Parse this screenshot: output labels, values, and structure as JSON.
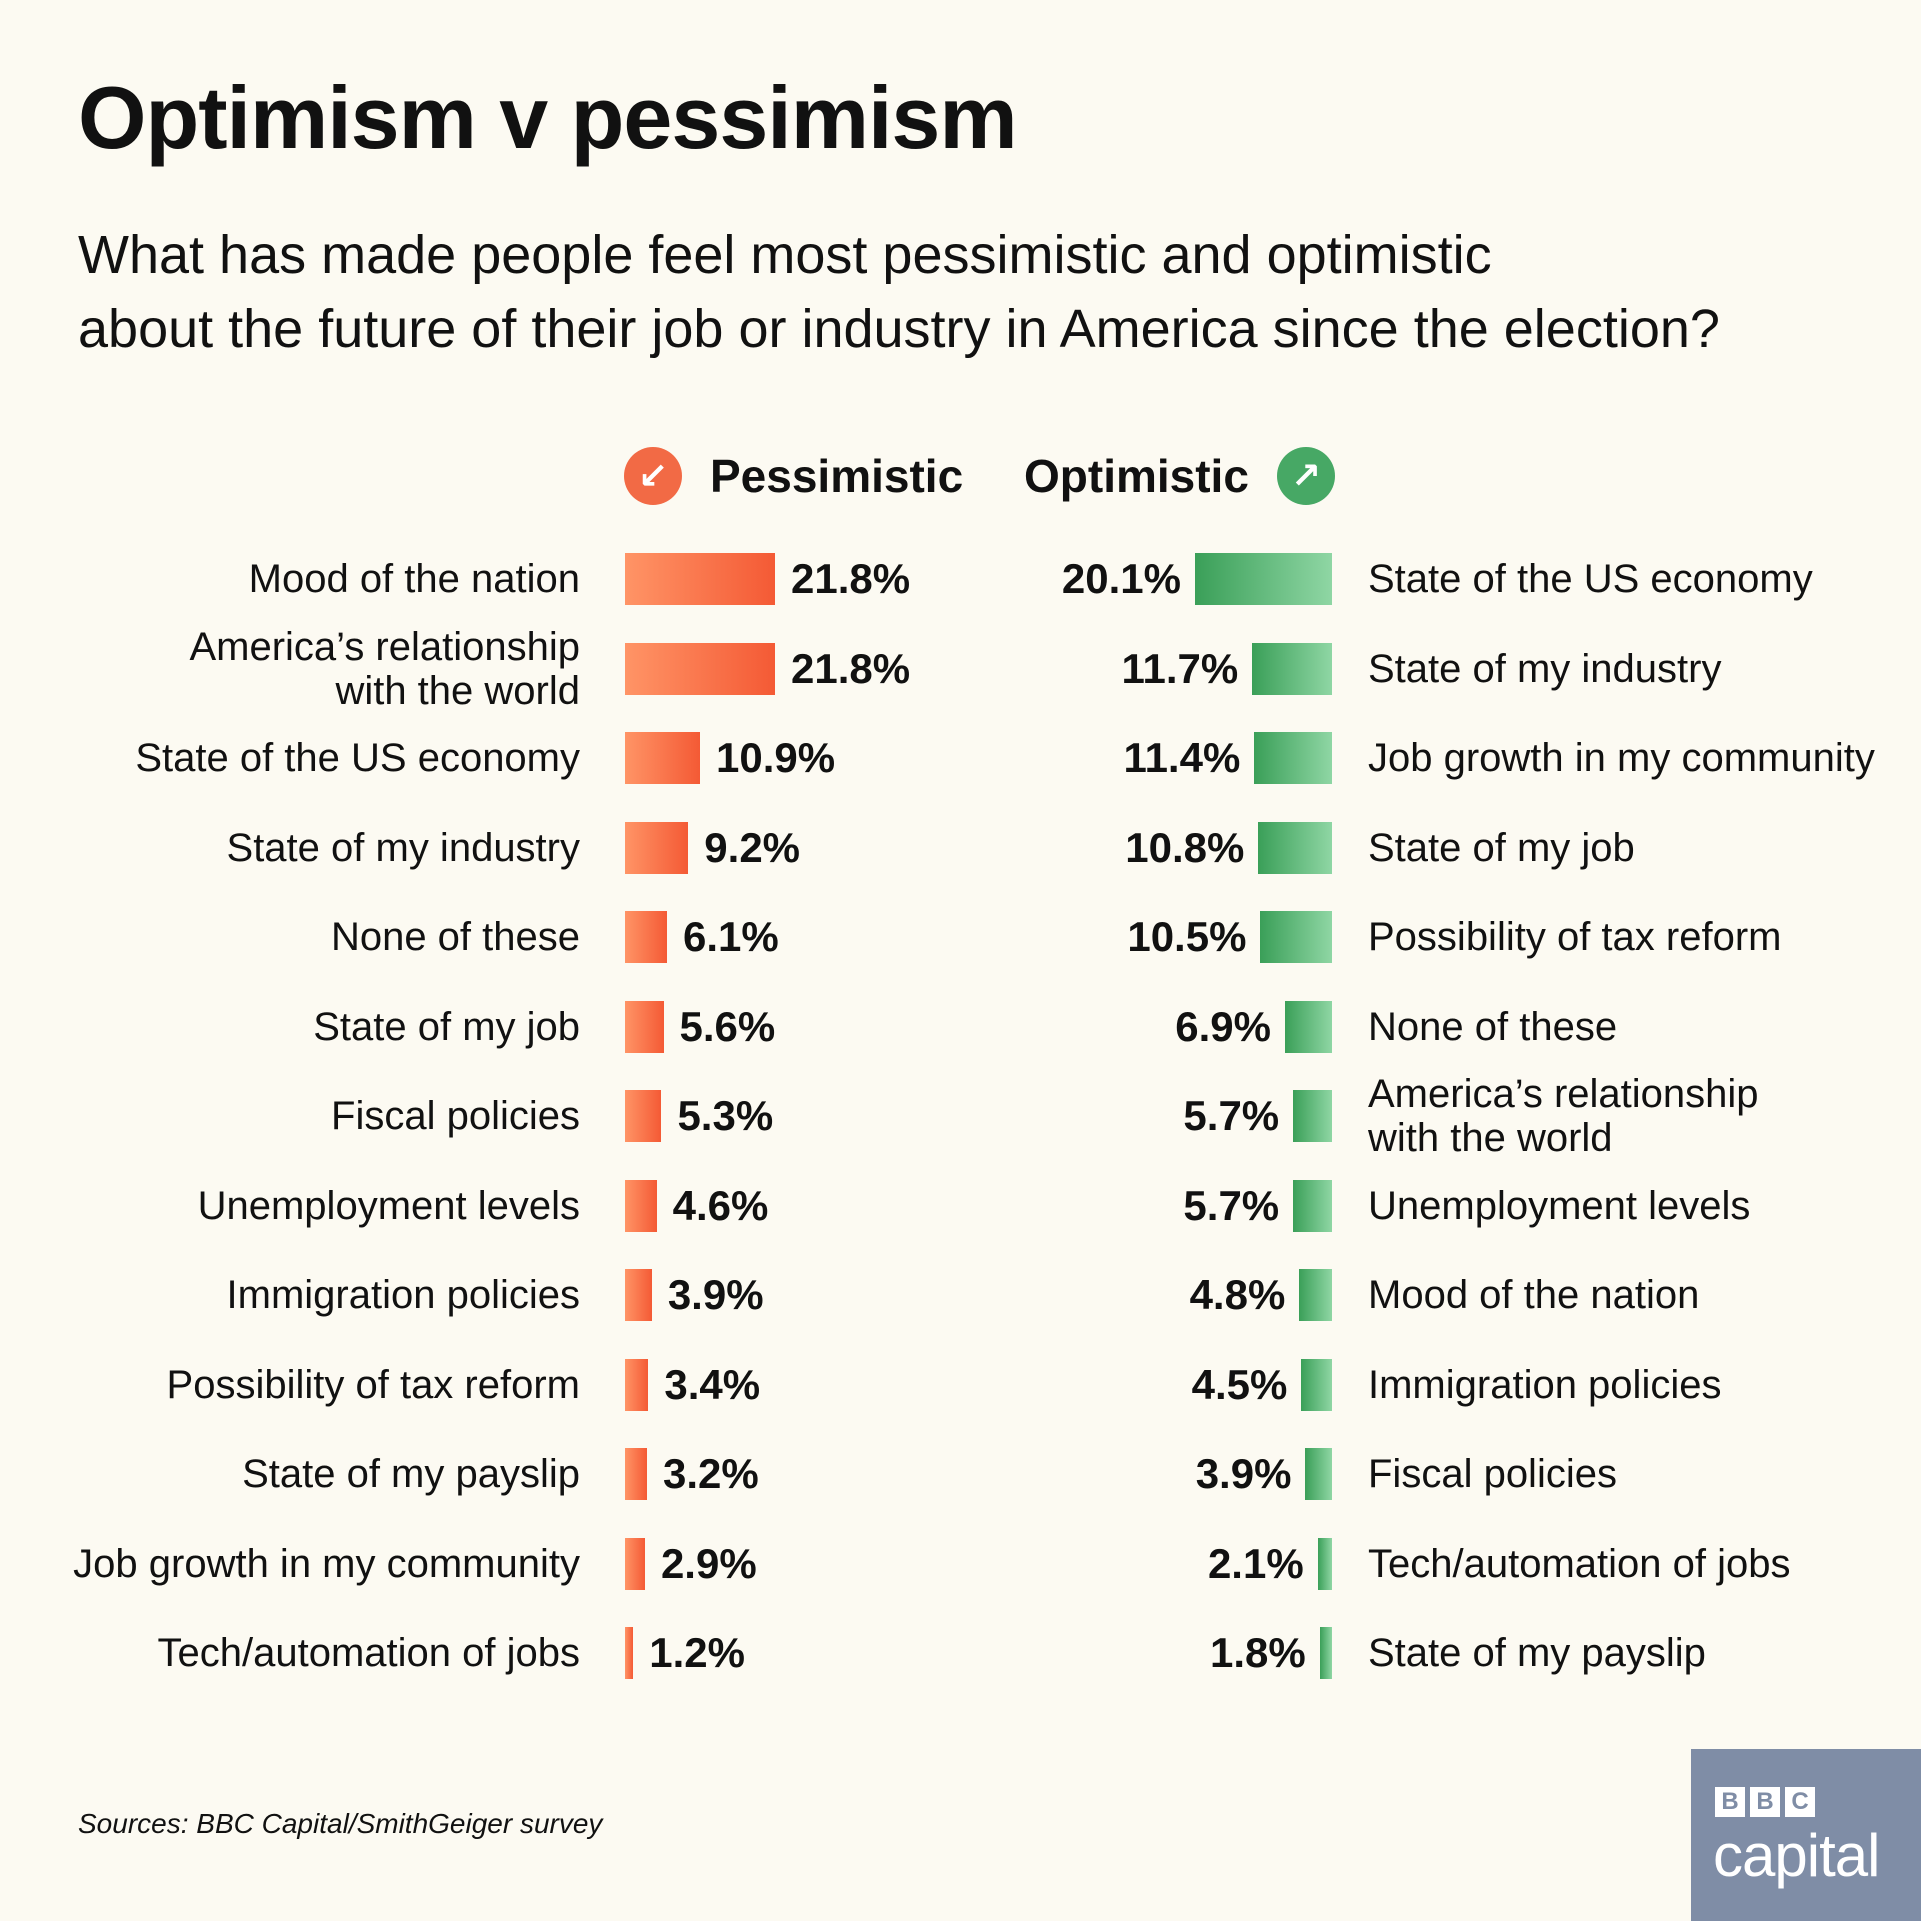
{
  "title": "Optimism v pessimism",
  "subtitle_line1": "What has made people feel most pessimistic and optimistic",
  "subtitle_line2": "about the future of their job or industry in America since the election?",
  "source": "Sources: BBC Capital/SmithGeiger survey",
  "logo": {
    "bbc": [
      "B",
      "B",
      "C"
    ],
    "capital": "capital"
  },
  "colors": {
    "pessimistic": "#f26a45",
    "optimistic": "#47a865",
    "background": "#fcfaf2",
    "logo": "#7f8da6"
  },
  "icons": {
    "pessimistic": "arrow-down-left-icon",
    "optimistic": "arrow-up-right-icon"
  },
  "chart_data": [
    {
      "type": "bar",
      "orientation": "horizontal",
      "series_name": "Pessimistic",
      "unit": "%",
      "categories": [
        "Mood of the nation",
        "America’s relationship\nwith the world",
        "State of the US economy",
        "State of my industry",
        "None of these",
        "State of my job",
        "Fiscal policies",
        "Unemployment levels",
        "Immigration policies",
        "Possibility of tax reform",
        "State of my payslip",
        "Job growth in my community",
        "Tech/automation of jobs"
      ],
      "values": [
        21.8,
        21.8,
        10.9,
        9.2,
        6.1,
        5.6,
        5.3,
        4.6,
        3.9,
        3.4,
        3.2,
        2.9,
        1.2
      ],
      "labels": [
        "21.8%",
        "21.8%",
        "10.9%",
        "9.2%",
        "6.1%",
        "5.6%",
        "5.3%",
        "4.6%",
        "3.9%",
        "3.4%",
        "3.2%",
        "2.9%",
        "1.2%"
      ]
    },
    {
      "type": "bar",
      "orientation": "horizontal",
      "series_name": "Optimistic",
      "unit": "%",
      "categories": [
        "State of the US economy",
        "State of my industry",
        "Job growth in my community",
        "State of my job",
        "Possibility of tax reform",
        "None of these",
        "America’s relationship\nwith the world",
        "Unemployment levels",
        "Mood of the nation",
        "Immigration policies",
        "Fiscal policies",
        "Tech/automation of jobs",
        "State of my payslip"
      ],
      "values": [
        20.1,
        11.7,
        11.4,
        10.8,
        10.5,
        6.9,
        5.7,
        5.7,
        4.8,
        4.5,
        3.9,
        2.1,
        1.8
      ],
      "labels": [
        "20.1%",
        "11.7%",
        "11.4%",
        "10.8%",
        "10.5%",
        "6.9%",
        "5.7%",
        "5.7%",
        "4.8%",
        "4.5%",
        "3.9%",
        "2.1%",
        "1.8%"
      ]
    }
  ]
}
